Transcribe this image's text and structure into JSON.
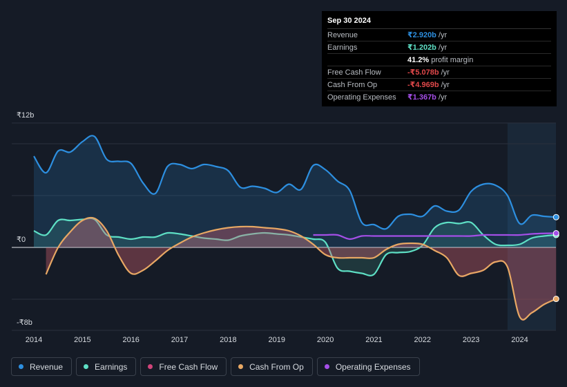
{
  "tooltip": {
    "date": "Sep 30 2024",
    "rows": [
      {
        "label": "Revenue",
        "value": "₹2.920b",
        "unit": "/yr",
        "color": "#2d8fe0"
      },
      {
        "label": "Earnings",
        "value": "₹1.202b",
        "unit": "/yr",
        "color": "#5ee0c5"
      },
      {
        "label": "",
        "value": "41.2%",
        "unit": "profit margin",
        "color": "#ffffff"
      },
      {
        "label": "Free Cash Flow",
        "value": "-₹5.078b",
        "unit": "/yr",
        "color": "#e0484a"
      },
      {
        "label": "Cash From Op",
        "value": "-₹4.969b",
        "unit": "/yr",
        "color": "#e0484a"
      },
      {
        "label": "Operating Expenses",
        "value": "₹1.367b",
        "unit": "/yr",
        "color": "#a54fe8"
      }
    ]
  },
  "legend": [
    {
      "label": "Revenue",
      "color": "#2d8fe0"
    },
    {
      "label": "Earnings",
      "color": "#5ee0c5"
    },
    {
      "label": "Free Cash Flow",
      "color": "#d0447a"
    },
    {
      "label": "Cash From Op",
      "color": "#e8a864"
    },
    {
      "label": "Operating Expenses",
      "color": "#a54fe8"
    }
  ],
  "chart_data": {
    "type": "line",
    "title": "",
    "y_tick_labels": [
      "₹12b",
      "₹0",
      "-₹8b"
    ],
    "ylim": [
      -8,
      12
    ],
    "xlim": [
      2014,
      2024.75
    ],
    "x_tick_labels": [
      "2014",
      "2015",
      "2016",
      "2017",
      "2018",
      "2019",
      "2020",
      "2021",
      "2022",
      "2023",
      "2024"
    ],
    "forecast_start": 2023.75,
    "series": [
      {
        "name": "Revenue",
        "color": "#2d8fe0",
        "fill": true,
        "points": [
          [
            2014,
            8.8
          ],
          [
            2014.25,
            7.2
          ],
          [
            2014.5,
            9.3
          ],
          [
            2014.75,
            9.2
          ],
          [
            2015,
            10.2
          ],
          [
            2015.25,
            10.7
          ],
          [
            2015.5,
            8.5
          ],
          [
            2015.75,
            8.3
          ],
          [
            2016,
            8.1
          ],
          [
            2016.25,
            6.2
          ],
          [
            2016.5,
            5.2
          ],
          [
            2016.75,
            7.8
          ],
          [
            2017,
            8
          ],
          [
            2017.25,
            7.6
          ],
          [
            2017.5,
            8
          ],
          [
            2017.75,
            7.8
          ],
          [
            2018,
            7.4
          ],
          [
            2018.25,
            5.8
          ],
          [
            2018.5,
            5.9
          ],
          [
            2018.75,
            5.7
          ],
          [
            2019,
            5.3
          ],
          [
            2019.25,
            6.1
          ],
          [
            2019.5,
            5.6
          ],
          [
            2019.75,
            7.9
          ],
          [
            2020,
            7.5
          ],
          [
            2020.25,
            6.4
          ],
          [
            2020.5,
            5.5
          ],
          [
            2020.75,
            2.4
          ],
          [
            2021,
            2.2
          ],
          [
            2021.25,
            1.8
          ],
          [
            2021.5,
            3
          ],
          [
            2021.75,
            3.2
          ],
          [
            2022,
            3
          ],
          [
            2022.25,
            4
          ],
          [
            2022.5,
            3.5
          ],
          [
            2022.75,
            3.6
          ],
          [
            2023,
            5.4
          ],
          [
            2023.25,
            6.1
          ],
          [
            2023.5,
            6
          ],
          [
            2023.75,
            5
          ],
          [
            2024,
            2.3
          ],
          [
            2024.25,
            3.1
          ],
          [
            2024.5,
            3
          ],
          [
            2024.75,
            2.92
          ]
        ]
      },
      {
        "name": "Earnings",
        "color": "#5ee0c5",
        "fill": true,
        "points": [
          [
            2014,
            1.6
          ],
          [
            2014.25,
            1.2
          ],
          [
            2014.5,
            2.6
          ],
          [
            2014.75,
            2.6
          ],
          [
            2015,
            2.7
          ],
          [
            2015.25,
            2.7
          ],
          [
            2015.5,
            1.2
          ],
          [
            2015.75,
            1
          ],
          [
            2016,
            0.8
          ],
          [
            2016.25,
            1
          ],
          [
            2016.5,
            1
          ],
          [
            2016.75,
            1.4
          ],
          [
            2017,
            1.3
          ],
          [
            2017.25,
            1.1
          ],
          [
            2017.5,
            0.9
          ],
          [
            2017.75,
            0.8
          ],
          [
            2018,
            0.7
          ],
          [
            2018.25,
            1.1
          ],
          [
            2018.5,
            1.3
          ],
          [
            2018.75,
            1.4
          ],
          [
            2019,
            1.3
          ],
          [
            2019.25,
            1.2
          ],
          [
            2019.5,
            1
          ],
          [
            2019.75,
            0.8
          ],
          [
            2020,
            0.5
          ],
          [
            2020.25,
            -2
          ],
          [
            2020.5,
            -2.3
          ],
          [
            2020.75,
            -2.5
          ],
          [
            2021,
            -2.6
          ],
          [
            2021.25,
            -0.7
          ],
          [
            2021.5,
            -0.5
          ],
          [
            2021.75,
            -0.4
          ],
          [
            2022,
            0.2
          ],
          [
            2022.25,
            1.9
          ],
          [
            2022.5,
            2.4
          ],
          [
            2022.75,
            2.3
          ],
          [
            2023,
            2.4
          ],
          [
            2023.25,
            1.2
          ],
          [
            2023.5,
            0.3
          ],
          [
            2023.75,
            0.2
          ],
          [
            2024,
            0.3
          ],
          [
            2024.25,
            0.9
          ],
          [
            2024.5,
            1.1
          ],
          [
            2024.75,
            1.202
          ]
        ]
      },
      {
        "name": "Free Cash Flow",
        "color": "#d0447a",
        "fill": true,
        "line": false,
        "points": [
          [
            2014.25,
            -2.6
          ],
          [
            2014.5,
            0
          ],
          [
            2014.75,
            1.5
          ],
          [
            2015,
            2.6
          ],
          [
            2015.25,
            2.8
          ],
          [
            2015.5,
            1.6
          ],
          [
            2015.75,
            -0.8
          ],
          [
            2016,
            -2.5
          ],
          [
            2016.25,
            -2.2
          ],
          [
            2016.5,
            -1.3
          ],
          [
            2016.75,
            -0.3
          ],
          [
            2017,
            0.4
          ],
          [
            2017.25,
            1
          ],
          [
            2017.5,
            1.4
          ],
          [
            2017.75,
            1.7
          ],
          [
            2018,
            1.9
          ],
          [
            2018.25,
            2
          ],
          [
            2018.5,
            2
          ],
          [
            2018.75,
            1.9
          ],
          [
            2019,
            1.8
          ],
          [
            2019.25,
            1.6
          ],
          [
            2019.5,
            1.1
          ],
          [
            2019.75,
            0.3
          ],
          [
            2020,
            -0.7
          ],
          [
            2020.25,
            -1
          ],
          [
            2020.5,
            -1
          ],
          [
            2020.75,
            -1
          ],
          [
            2021,
            -1
          ],
          [
            2021.25,
            -0.2
          ],
          [
            2021.5,
            0.3
          ],
          [
            2021.75,
            0.4
          ],
          [
            2022,
            0.3
          ],
          [
            2022.25,
            -0.3
          ],
          [
            2022.5,
            -1
          ],
          [
            2022.75,
            -2.8
          ],
          [
            2023,
            -2.6
          ],
          [
            2023.25,
            -2.3
          ],
          [
            2023.5,
            -1.5
          ],
          [
            2023.75,
            -2
          ],
          [
            2024,
            -6.8
          ],
          [
            2024.25,
            -6.4
          ],
          [
            2024.5,
            -5.6
          ],
          [
            2024.75,
            -5.078
          ]
        ]
      },
      {
        "name": "Cash From Op",
        "color": "#e8a864",
        "fill": true,
        "points": [
          [
            2014.25,
            -2.6
          ],
          [
            2014.5,
            0
          ],
          [
            2014.75,
            1.5
          ],
          [
            2015,
            2.6
          ],
          [
            2015.25,
            2.8
          ],
          [
            2015.5,
            1.6
          ],
          [
            2015.75,
            -0.8
          ],
          [
            2016,
            -2.5
          ],
          [
            2016.25,
            -2.2
          ],
          [
            2016.5,
            -1.3
          ],
          [
            2016.75,
            -0.3
          ],
          [
            2017,
            0.4
          ],
          [
            2017.25,
            1
          ],
          [
            2017.5,
            1.4
          ],
          [
            2017.75,
            1.7
          ],
          [
            2018,
            1.9
          ],
          [
            2018.25,
            2
          ],
          [
            2018.5,
            2
          ],
          [
            2018.75,
            1.9
          ],
          [
            2019,
            1.8
          ],
          [
            2019.25,
            1.6
          ],
          [
            2019.5,
            1.1
          ],
          [
            2019.75,
            0.3
          ],
          [
            2020,
            -0.7
          ],
          [
            2020.25,
            -1
          ],
          [
            2020.5,
            -1
          ],
          [
            2020.75,
            -1
          ],
          [
            2021,
            -1
          ],
          [
            2021.25,
            -0.2
          ],
          [
            2021.5,
            0.3
          ],
          [
            2021.75,
            0.4
          ],
          [
            2022,
            0.3
          ],
          [
            2022.25,
            -0.3
          ],
          [
            2022.5,
            -1
          ],
          [
            2022.75,
            -2.7
          ],
          [
            2023,
            -2.5
          ],
          [
            2023.25,
            -2.2
          ],
          [
            2023.5,
            -1.4
          ],
          [
            2023.75,
            -1.9
          ],
          [
            2024,
            -6.7
          ],
          [
            2024.25,
            -6.3
          ],
          [
            2024.5,
            -5.5
          ],
          [
            2024.75,
            -4.969
          ]
        ]
      },
      {
        "name": "Operating Expenses",
        "color": "#a54fe8",
        "fill": false,
        "points": [
          [
            2019.75,
            1.2
          ],
          [
            2020,
            1.2
          ],
          [
            2020.25,
            1.2
          ],
          [
            2020.5,
            0.8
          ],
          [
            2020.75,
            1.1
          ],
          [
            2021,
            1.1
          ],
          [
            2021.25,
            1.1
          ],
          [
            2021.5,
            1.1
          ],
          [
            2021.75,
            1.1
          ],
          [
            2022,
            1.1
          ],
          [
            2022.25,
            1.1
          ],
          [
            2022.5,
            1.1
          ],
          [
            2022.75,
            1.1
          ],
          [
            2023,
            1.1
          ],
          [
            2023.25,
            1.2
          ],
          [
            2023.5,
            1.2
          ],
          [
            2023.75,
            1.2
          ],
          [
            2024,
            1.2
          ],
          [
            2024.25,
            1.3
          ],
          [
            2024.5,
            1.35
          ],
          [
            2024.75,
            1.367
          ]
        ]
      }
    ]
  }
}
